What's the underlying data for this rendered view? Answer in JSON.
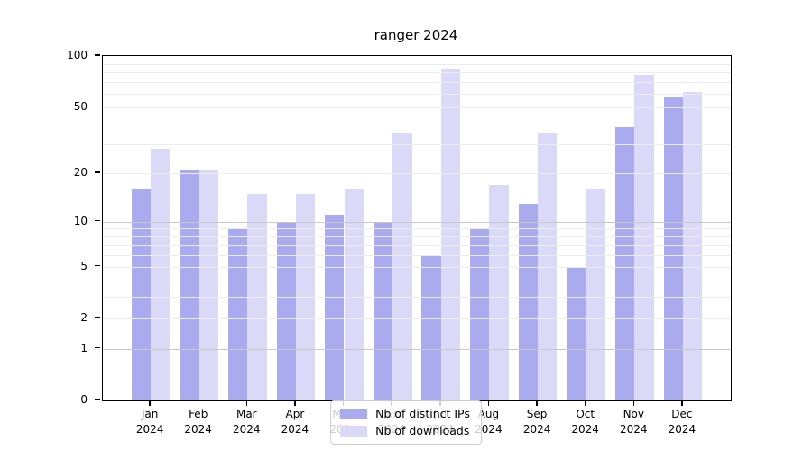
{
  "chart_data": {
    "type": "bar",
    "title": "ranger 2024",
    "categories": [
      "Jan",
      "Feb",
      "Mar",
      "Apr",
      "May",
      "Jun",
      "Jul",
      "Aug",
      "Sep",
      "Oct",
      "Nov",
      "Dec"
    ],
    "category_year": "2024",
    "series": [
      {
        "name": "Nb of distinct IPs",
        "color": "#aaaaee",
        "values": [
          16,
          21,
          9,
          10,
          11,
          10,
          6,
          9,
          13,
          5,
          38,
          57
        ]
      },
      {
        "name": "Nb of downloads",
        "color": "#dadaf8",
        "values": [
          28,
          21,
          15,
          15,
          16,
          35,
          83,
          17,
          35,
          16,
          77,
          61
        ]
      }
    ],
    "yscale": "log1p",
    "ylim": [
      0,
      100
    ],
    "yticks": [
      0,
      1,
      2,
      5,
      10,
      20,
      50,
      100
    ],
    "minor_gridlines": [
      2,
      3,
      4,
      5,
      6,
      7,
      8,
      9,
      20,
      30,
      40,
      50,
      60,
      70,
      80,
      90
    ],
    "major_gridlines": [
      1,
      10
    ],
    "xlabel": "",
    "ylabel": "",
    "grid": true,
    "legend_position": "lower center"
  },
  "colors": {
    "background": "#ffffff",
    "spine": "#000000",
    "minor_grid": "#ededed",
    "major_grid": "#c8c8c8",
    "legend_border": "#cccccc"
  }
}
